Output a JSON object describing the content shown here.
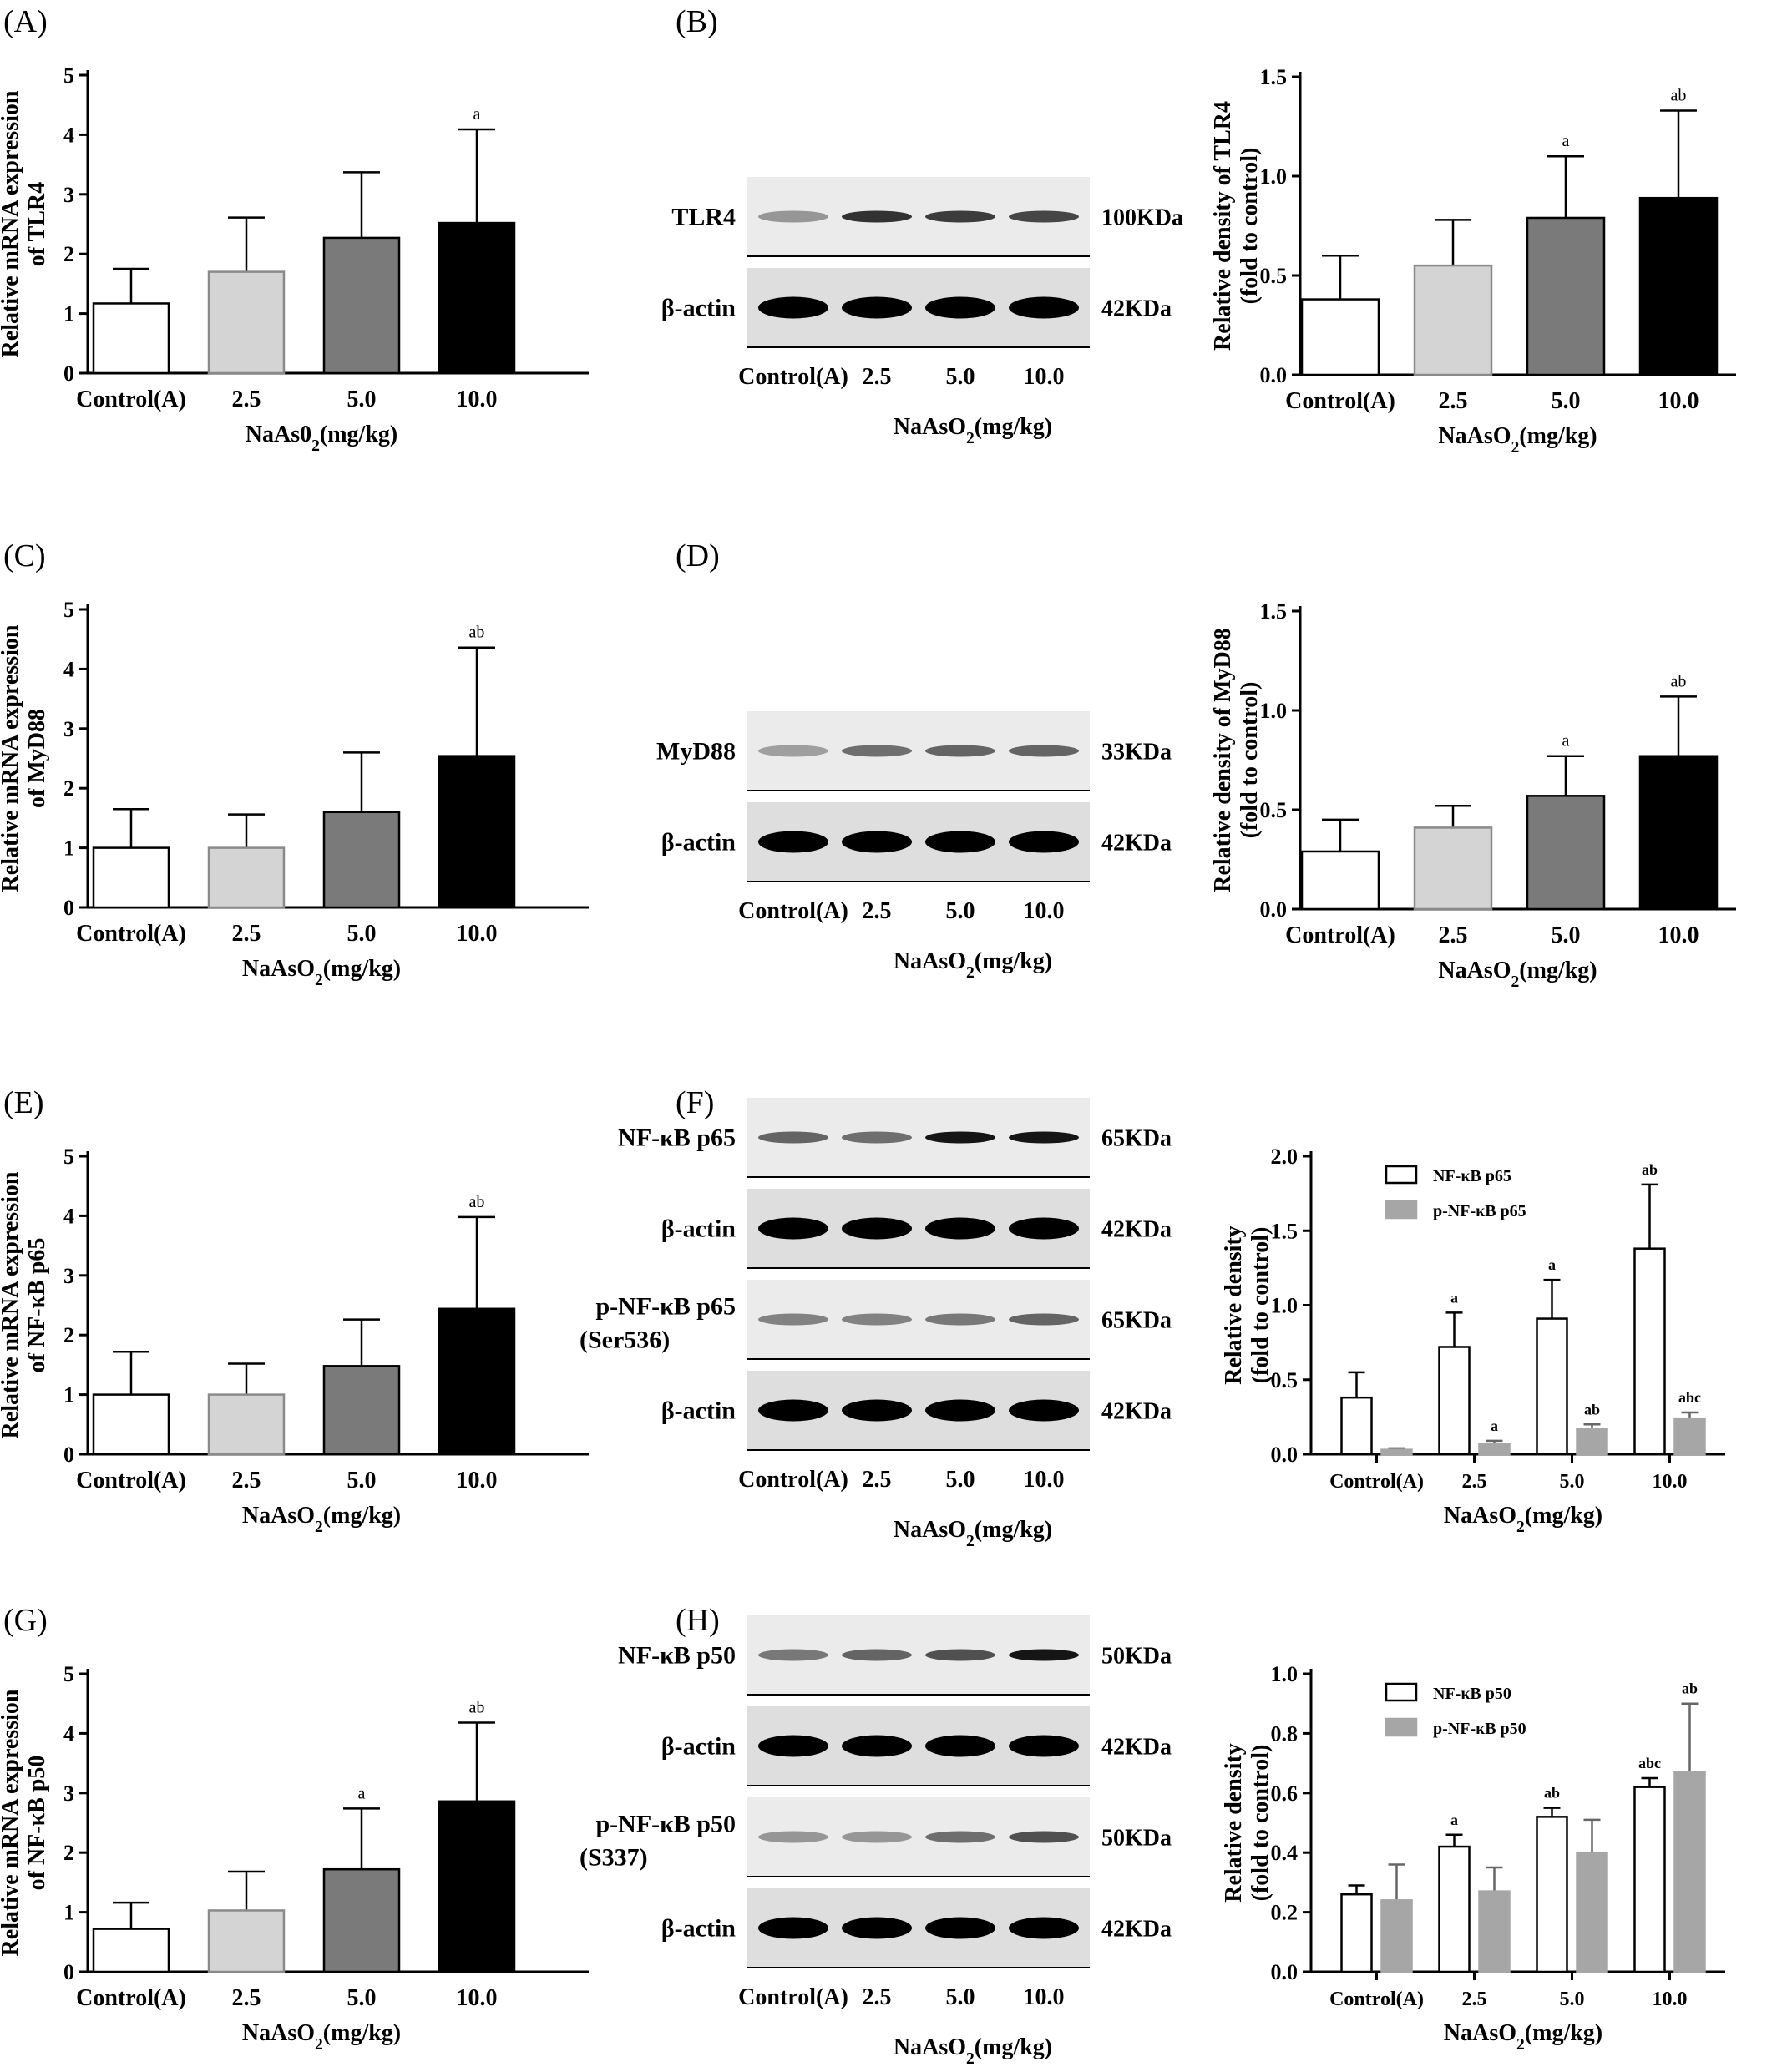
{
  "panels": [
    {
      "letter": "(A)",
      "chart": 0
    },
    {
      "letter": "(B)",
      "chart": 1,
      "blot": 0
    },
    {
      "letter": "(C)",
      "chart": 2
    },
    {
      "letter": "(D)",
      "chart": 3,
      "blot": 1
    },
    {
      "letter": "(E)",
      "chart": 4
    },
    {
      "letter": "(F)",
      "chart": 5,
      "blot": 2
    },
    {
      "letter": "(G)",
      "chart": 6
    },
    {
      "letter": "(H)",
      "chart": 7,
      "blot": 3
    }
  ],
  "colors": {
    "control": "#ffffff",
    "dose_2_5": "#d4d4d4",
    "dose_5_0": "#7a7a7a",
    "dose_10_0": "#000000",
    "phospho_series": "#a6a6a6",
    "axis": "#000000"
  },
  "blots": [
    {
      "lanes": [
        "Control(A)",
        "2.5",
        "5.0",
        "10.0"
      ],
      "xlabel_html": "NaAsO<tspan baseline-shift='sub' font-size='70%'>2</tspan>(mg/kg)",
      "rows": [
        {
          "label": "TLR4",
          "label_style": "serif",
          "size": "100KDa",
          "intensity": [
            0.25,
            0.75,
            0.7,
            0.65
          ]
        },
        {
          "label": "β-actin",
          "label_style": "sans-italic-beta",
          "size": "42KDa",
          "intensity": [
            1.0,
            1.0,
            1.0,
            1.0
          ]
        }
      ]
    },
    {
      "lanes": [
        "Control(A)",
        "2.5",
        "5.0",
        "10.0"
      ],
      "xlabel_html": "NaAsO<tspan baseline-shift='sub' font-size='70%'>2</tspan>(mg/kg)",
      "rows": [
        {
          "label": "MyD88",
          "label_style": "serif",
          "size": "33KDa",
          "intensity": [
            0.2,
            0.45,
            0.5,
            0.5
          ]
        },
        {
          "label": "β-actin",
          "label_style": "sans-italic-beta",
          "size": "42KDa",
          "intensity": [
            1.0,
            1.0,
            1.0,
            1.0
          ]
        }
      ]
    },
    {
      "lanes": [
        "Control(A)",
        "2.5",
        "5.0",
        "10.0"
      ],
      "xlabel_html": "NaAsO<tspan baseline-shift='sub' font-size='70%'>2</tspan>(mg/kg)",
      "rows": [
        {
          "label": "NF-κB p65",
          "label_style": "sans",
          "size": "65KDa",
          "intensity": [
            0.5,
            0.45,
            0.9,
            0.9
          ]
        },
        {
          "label": "β-actin",
          "label_style": "sans-italic-beta",
          "size": "42KDa",
          "intensity": [
            1.0,
            1.0,
            1.0,
            1.0
          ]
        },
        {
          "label": "p-NF-κB p65",
          "label2": "(Ser536)",
          "label_style": "sans",
          "size": "65KDa",
          "intensity": [
            0.35,
            0.35,
            0.4,
            0.5
          ]
        },
        {
          "label": "β-actin",
          "label_style": "sans-italic-beta",
          "size": "42KDa",
          "intensity": [
            1.0,
            1.0,
            1.0,
            1.0
          ]
        }
      ]
    },
    {
      "lanes": [
        "Control(A)",
        "2.5",
        "5.0",
        "10.0"
      ],
      "xlabel_html": "NaAsO<tspan baseline-shift='sub' font-size='70%'>2</tspan>(mg/kg)",
      "rows": [
        {
          "label": "NF-κB p50",
          "label_style": "sans",
          "size": "50KDa",
          "intensity": [
            0.4,
            0.5,
            0.6,
            0.9
          ]
        },
        {
          "label": "β-actin",
          "label_style": "sans-italic-beta",
          "size": "42KDa",
          "intensity": [
            1.0,
            1.0,
            1.0,
            1.0
          ]
        },
        {
          "label": "p-NF-κB p50",
          "label2": "(S337)",
          "label_style": "sans",
          "size": "50KDa",
          "intensity": [
            0.25,
            0.25,
            0.45,
            0.6
          ]
        },
        {
          "label": "β-actin",
          "label_style": "sans-italic-beta",
          "size": "42KDa",
          "intensity": [
            1.0,
            1.0,
            1.0,
            1.0
          ]
        }
      ]
    }
  ],
  "chart_data": [
    {
      "type": "bar",
      "categories": [
        "Control(A)",
        "2.5",
        "5.0",
        "10.0"
      ],
      "values": [
        1.17,
        1.7,
        2.27,
        2.52
      ],
      "errors": [
        0.58,
        0.91,
        1.1,
        1.57
      ],
      "annotations": [
        "",
        "",
        "",
        "a"
      ],
      "ylabel": "Relative mRNA expression|of TLR4",
      "xlabel_html": "NaAs0<tspan baseline-shift='sub' font-size='70%'>2</tspan>(mg/kg)",
      "ylim": [
        0,
        5
      ],
      "yticks": [
        "0",
        "1",
        "2",
        "3",
        "4",
        "5"
      ]
    },
    {
      "type": "bar",
      "categories": [
        "Control(A)",
        "2.5",
        "5.0",
        "10.0"
      ],
      "values": [
        0.38,
        0.55,
        0.79,
        0.89
      ],
      "errors": [
        0.22,
        0.23,
        0.31,
        0.44
      ],
      "annotations": [
        "",
        "",
        "a",
        "ab"
      ],
      "ylabel": "Relative density of TLR4|(fold to control)",
      "xlabel_html": "NaAsO<tspan baseline-shift='sub' font-size='70%'>2</tspan>(mg/kg)",
      "ylim": [
        0,
        1.5
      ],
      "yticks": [
        "0.0",
        "0.5",
        "1.0",
        "1.5"
      ],
      "font": "sans"
    },
    {
      "type": "bar",
      "categories": [
        "Control(A)",
        "2.5",
        "5.0",
        "10.0"
      ],
      "values": [
        1.0,
        1.0,
        1.6,
        2.54
      ],
      "errors": [
        0.65,
        0.56,
        1.0,
        1.82
      ],
      "annotations": [
        "",
        "",
        "",
        "ab"
      ],
      "ylabel": "Relative mRNA expression|of MyD88",
      "xlabel_html": "NaAsO<tspan baseline-shift='sub' font-size='70%'>2</tspan>(mg/kg)",
      "ylim": [
        0,
        5
      ],
      "yticks": [
        "0",
        "1",
        "2",
        "3",
        "4",
        "5"
      ]
    },
    {
      "type": "bar",
      "categories": [
        "Control(A)",
        "2.5",
        "5.0",
        "10.0"
      ],
      "values": [
        0.29,
        0.41,
        0.57,
        0.77
      ],
      "errors": [
        0.16,
        0.11,
        0.2,
        0.3
      ],
      "annotations": [
        "",
        "",
        "a",
        "ab"
      ],
      "ylabel": "Relative density of MyD88|(fold to control)",
      "xlabel_html": "NaAsO<tspan baseline-shift='sub' font-size='70%'>2</tspan>(mg/kg)",
      "ylim": [
        0,
        1.5
      ],
      "yticks": [
        "0.0",
        "0.5",
        "1.0",
        "1.5"
      ]
    },
    {
      "type": "bar",
      "categories": [
        "Control(A)",
        "2.5",
        "5.0",
        "10.0"
      ],
      "values": [
        1.0,
        1.0,
        1.48,
        2.44
      ],
      "errors": [
        0.72,
        0.52,
        0.78,
        1.54
      ],
      "annotations": [
        "",
        "",
        "",
        "ab"
      ],
      "ylabel": "Relative mRNA expression|of NF-κB p65",
      "xlabel_html": "NaAsO<tspan baseline-shift='sub' font-size='70%'>2</tspan>(mg/kg)",
      "ylim": [
        0,
        5
      ],
      "yticks": [
        "0",
        "1",
        "2",
        "3",
        "4",
        "5"
      ]
    },
    {
      "type": "bar",
      "categories": [
        "Control(A)",
        "2.5",
        "5.0",
        "10.0"
      ],
      "series": [
        {
          "name": "NF-κB p65",
          "values": [
            0.38,
            0.72,
            0.91,
            1.38
          ],
          "errors": [
            0.17,
            0.23,
            0.26,
            0.43
          ],
          "annotations": [
            "",
            "a",
            "a",
            "ab"
          ]
        },
        {
          "name": "p-NF-κB p65",
          "values": [
            0.03,
            0.07,
            0.17,
            0.24
          ],
          "errors": [
            0.01,
            0.02,
            0.03,
            0.04
          ],
          "annotations": [
            "",
            "a",
            "ab",
            "abc"
          ]
        }
      ],
      "ylabel": "Relative density|(fold to control)",
      "xlabel_html": "NaAsO<tspan baseline-shift='sub' font-size='70%'>2</tspan>(mg/kg)",
      "ylim": [
        0,
        2.0
      ],
      "yticks": [
        "0.0",
        "0.5",
        "1.0",
        "1.5",
        "2.0"
      ],
      "legend": "top-left"
    },
    {
      "type": "bar",
      "categories": [
        "Control(A)",
        "2.5",
        "5.0",
        "10.0"
      ],
      "values": [
        0.72,
        1.03,
        1.72,
        2.86
      ],
      "errors": [
        0.44,
        0.65,
        1.02,
        1.32
      ],
      "annotations": [
        "",
        "",
        "a",
        "ab"
      ],
      "ylabel": "Relative mRNA expression|of NF-κB p50",
      "xlabel_html": "NaAsO<tspan baseline-shift='sub' font-size='70%'>2</tspan>(mg/kg)",
      "ylim": [
        0,
        5
      ],
      "yticks": [
        "0",
        "1",
        "2",
        "3",
        "4",
        "5"
      ]
    },
    {
      "type": "bar",
      "categories": [
        "Control(A)",
        "2.5",
        "5.0",
        "10.0"
      ],
      "series": [
        {
          "name": "NF-κB p50",
          "values": [
            0.26,
            0.42,
            0.52,
            0.62
          ],
          "errors": [
            0.03,
            0.04,
            0.03,
            0.03
          ],
          "annotations": [
            "",
            "a",
            "ab",
            "abc"
          ]
        },
        {
          "name": "p-NF-κB p50",
          "values": [
            0.24,
            0.27,
            0.4,
            0.67
          ],
          "errors": [
            0.12,
            0.08,
            0.11,
            0.23
          ],
          "annotations": [
            "",
            "",
            "",
            "ab"
          ]
        }
      ],
      "ylabel": "Relative density|(fold to control)",
      "xlabel_html": "NaAsO<tspan baseline-shift='sub' font-size='70%'>2</tspan>(mg/kg)",
      "ylim": [
        0,
        1.0
      ],
      "yticks": [
        "0.0",
        "0.2",
        "0.4",
        "0.6",
        "0.8",
        "1.0"
      ],
      "legend": "top-left"
    }
  ]
}
